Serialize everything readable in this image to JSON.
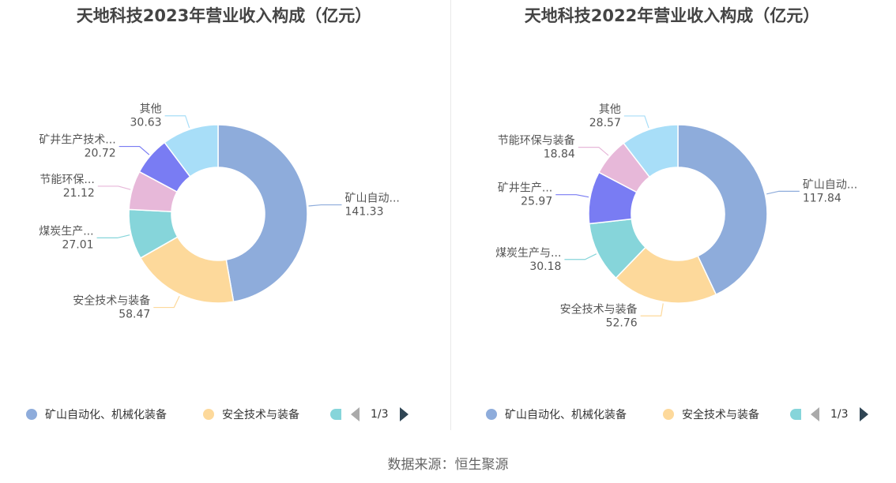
{
  "chart_data": [
    {
      "type": "pie",
      "variant": "donut",
      "title": "天地科技2023年营业收入构成（亿元）",
      "slices": [
        {
          "name": "矿山自动化、机械化装备",
          "label": "矿山自动...",
          "value": 141.33,
          "value_text": "141.33",
          "color": "#8eacdb"
        },
        {
          "name": "安全技术与装备",
          "label": "安全技术与装备",
          "value": 58.47,
          "value_text": "58.47",
          "color": "#fdd99b"
        },
        {
          "name": "煤炭生产",
          "label": "煤炭生产...",
          "value": 27.01,
          "value_text": "27.01",
          "color": "#86d5da"
        },
        {
          "name": "节能环保",
          "label": "节能环保...",
          "value": 21.12,
          "value_text": "21.12",
          "color": "#e7b8d9"
        },
        {
          "name": "矿井生产技术",
          "label": "矿井生产技术...",
          "value": 20.72,
          "value_text": "20.72",
          "color": "#797cf3"
        },
        {
          "name": "其他",
          "label": "其他",
          "value": 30.63,
          "value_text": "30.63",
          "color": "#a8def8"
        }
      ],
      "legend": {
        "position": "bottom",
        "items": [
          "矿山自动化、机械化装备",
          "安全技术与装备"
        ],
        "page": "1/3"
      }
    },
    {
      "type": "pie",
      "variant": "donut",
      "title": "天地科技2022年营业收入构成（亿元）",
      "slices": [
        {
          "name": "矿山自动化、机械化装备",
          "label": "矿山自动...",
          "value": 117.84,
          "value_text": "117.84",
          "color": "#8eacdb"
        },
        {
          "name": "安全技术与装备",
          "label": "安全技术与装备",
          "value": 52.76,
          "value_text": "52.76",
          "color": "#fdd99b"
        },
        {
          "name": "煤炭生产与",
          "label": "煤炭生产与...",
          "value": 30.18,
          "value_text": "30.18",
          "color": "#86d5da"
        },
        {
          "name": "矿井生产",
          "label": "矿井生产...",
          "value": 25.97,
          "value_text": "25.97",
          "color": "#797cf3"
        },
        {
          "name": "节能环保与装备",
          "label": "节能环保与装备",
          "value": 18.84,
          "value_text": "18.84",
          "color": "#e7b8d9"
        },
        {
          "name": "其他",
          "label": "其他",
          "value": 28.57,
          "value_text": "28.57",
          "color": "#a8def8"
        }
      ],
      "legend": {
        "position": "bottom",
        "items": [
          "矿山自动化、机械化装备",
          "安全技术与装备"
        ],
        "page": "1/3"
      }
    }
  ],
  "footer": {
    "source": "数据来源：恒生聚源"
  }
}
